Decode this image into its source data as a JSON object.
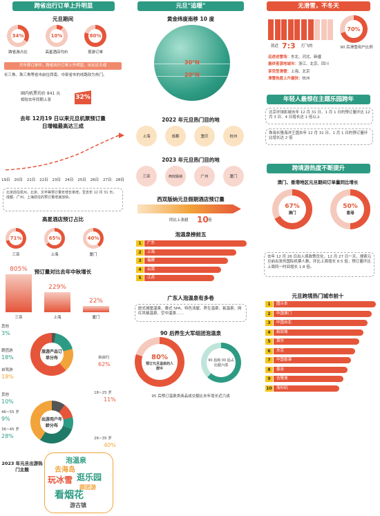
{
  "col1": {
    "banner": "跨省出行订单上升明显",
    "yuandan_title": "元旦期间",
    "rings": [
      {
        "pct": "34%",
        "label": "跨省游占比",
        "value": 34
      },
      {
        "pct": "10%",
        "label": "高星酒店均价",
        "value": 10
      },
      {
        "pct": "80%",
        "label": "夜游订单",
        "value": 80
      }
    ],
    "strip": "大年夜订单中，跨省出行订单上升明显，出比达五成",
    "regions_text": "长三角、珠三角等省市前往西南、中部省市的线路较为热门。",
    "price_text": "国内机票均价 841 元",
    "price_sub": "相较去年同期上涨",
    "price_badge": "32%",
    "airfare_title": "去年 12月19 日以来元旦机票预订量",
    "airfare_title2": "日增幅最高达三成",
    "dates": [
      "19日",
      "20日",
      "21日",
      "22日",
      "23日",
      "24日",
      "25日",
      "26日",
      "27日",
      "28日"
    ],
    "airfare_note": "北京前往杭州、北京、文丰等预订量年增长率增，至去年 12 月 31 日，成都、广州、上海前往的预订量增速加快。",
    "hotel_title": "高星酒店预订占比",
    "hotel_rings": [
      {
        "pct": "71%",
        "label": "三亚",
        "value": 71
      },
      {
        "pct": "65%",
        "label": "上海",
        "value": 65
      },
      {
        "pct": "40%",
        "label": "厦门",
        "value": 40
      }
    ],
    "growth_title": "预订量对比去年中秋增长",
    "growth_bars": [
      {
        "pct": "805%",
        "label": "三亚",
        "value": 805
      },
      {
        "pct": "229%",
        "label": "上海",
        "value": 229
      },
      {
        "pct": "22%",
        "label": "厦门",
        "value": 22
      }
    ],
    "donut1_title": "旅游产品订单分布",
    "donut1_segments": [
      {
        "label": "其他",
        "pct": "3%",
        "value": 3
      },
      {
        "label": "跟团游",
        "pct": "18%",
        "value": 18
      },
      {
        "label": "自驾游",
        "pct": "18%",
        "value": 18
      },
      {
        "label": "自由行",
        "pct": "62%",
        "value": 62
      }
    ],
    "donut2_title": "出游用户年龄分布",
    "donut2_segments": [
      {
        "label": "其他",
        "pct": "10%",
        "value": 10
      },
      {
        "label": "18~25 岁",
        "pct": "11%",
        "value": 11
      },
      {
        "label": "46~55 岁",
        "pct": "9%",
        "value": 9
      },
      {
        "label": "36~45 岁",
        "pct": "28%",
        "value": 28
      },
      {
        "label": "26~35 岁",
        "pct": "40%",
        "value": 40
      }
    ],
    "wordcloud_title": "2023 年元旦出游热门主题",
    "words": [
      "泡温泉",
      "去海岛",
      "玩冰雪",
      "逛乐园",
      "跟团游",
      "看烟花",
      "游古镇"
    ]
  },
  "col2": {
    "banner": "元旦\"追暖\"",
    "globe_title": "黄金纬度南移 10 度",
    "lat1": "30°N",
    "lat2": "20°N",
    "dest2022_title": "2022 年元旦热门目的地",
    "dest2022": [
      "上海",
      "成都",
      "重庆",
      "杭州"
    ],
    "dest2023_title": "2023 年元旦热门目的地",
    "dest2023": [
      "三亚",
      "西双版纳",
      "广州",
      "厦门"
    ],
    "xsbn_title": "西双版纳元旦假期酒店预订量",
    "xsbn_sub": "同比上涨超",
    "xsbn_num": "10",
    "xsbn_unit": "倍",
    "hotspring_title": "泡温泉榜前五",
    "hotspring": [
      {
        "n": "1",
        "name": "广东",
        "value": 100
      },
      {
        "n": "2",
        "name": "上海",
        "value": 90
      },
      {
        "n": "3",
        "name": "福建",
        "value": 82
      },
      {
        "n": "4",
        "name": "云南",
        "value": 75
      },
      {
        "n": "5",
        "name": "江苏",
        "value": 68
      }
    ],
    "gd_title": "广东人泡温泉有多卷",
    "gd_text": "欧式城堡温泉、泰式 SPA、特色汤屋、养生温泉、氡温泉、网红风格温泉、空中温泉……",
    "post90_title": "90 后养生大军组团泡温泉",
    "post90_big": "80%",
    "post90_big_sub": "预订元旦温泉的人群中",
    "post90_small": "90 后和 00 后占比超六成",
    "post95_text": "95 后预订温泉类商品成交额比去年增长近六成"
  },
  "col3": {
    "banner": "无滑雪，不冬天",
    "ratio_pre": "就近",
    "ratio": "7:3",
    "ratio_post": "打飞的",
    "ring_pct": "70%",
    "ring_label": "90 后滑雪用户比例",
    "ring_value": 70,
    "lists": [
      {
        "k": "远途进雪场：",
        "v": "东北、河北、新疆"
      },
      {
        "k": "最终客源地城市：",
        "v": "浙江、北京、四川"
      },
      {
        "k": "享受型滑雪：",
        "v": "上海、北京"
      },
      {
        "k": "滑雪热度上升最快：",
        "v": "杭州"
      }
    ],
    "young_title": "年轻人最想在主题乐园跨年",
    "young_text1": "北京环球影城去年 12 月 31 日、1 月 1 日的预订量环比 12 月 3 日、4 日增长达 1 倍以上",
    "young_text2": "珠海长隆海洋王国去年 12 月 31 日、1 月 1 日的预订量环比增长达 2 倍",
    "cross_title": "跨境游热度不断提升",
    "macau_title": "澳门、香港地区元旦期间订单量同比增长",
    "macau": {
      "pct": "67%",
      "label": "澳门",
      "value": 67
    },
    "hk": {
      "pct": "50%",
      "label": "香港",
      "value": 50
    },
    "cross_text": "去年 12 月 26 日出入境政策优化，12 月 27 日一天，搜索元旦前出发的国际机票人数，环比上周增长 8.5 倍，预订量环比上周同一时间增长 1.8 倍。",
    "top10_title": "元旦跨境热门城市前十",
    "top10": [
      {
        "n": "1",
        "name": "图示本",
        "value": 100
      },
      {
        "n": "2",
        "name": "中国澳门",
        "value": 96
      },
      {
        "n": "3",
        "name": "中国台北",
        "value": 92
      },
      {
        "n": "4",
        "name": "新加坡",
        "value": 88
      },
      {
        "n": "5",
        "name": "首尔",
        "value": 84
      },
      {
        "n": "6",
        "name": "东京",
        "value": 80
      },
      {
        "n": "7",
        "name": "中国香港",
        "value": 76
      },
      {
        "n": "8",
        "name": "曼谷",
        "value": 72
      },
      {
        "n": "9",
        "name": "吉隆坡",
        "value": 68
      },
      {
        "n": "10",
        "name": "洛杉矶",
        "value": 64
      }
    ]
  },
  "colors": {
    "teal": "#2d9b83",
    "red": "#e5553a",
    "yellow": "#f5c518",
    "orange": "#f2a33a"
  }
}
